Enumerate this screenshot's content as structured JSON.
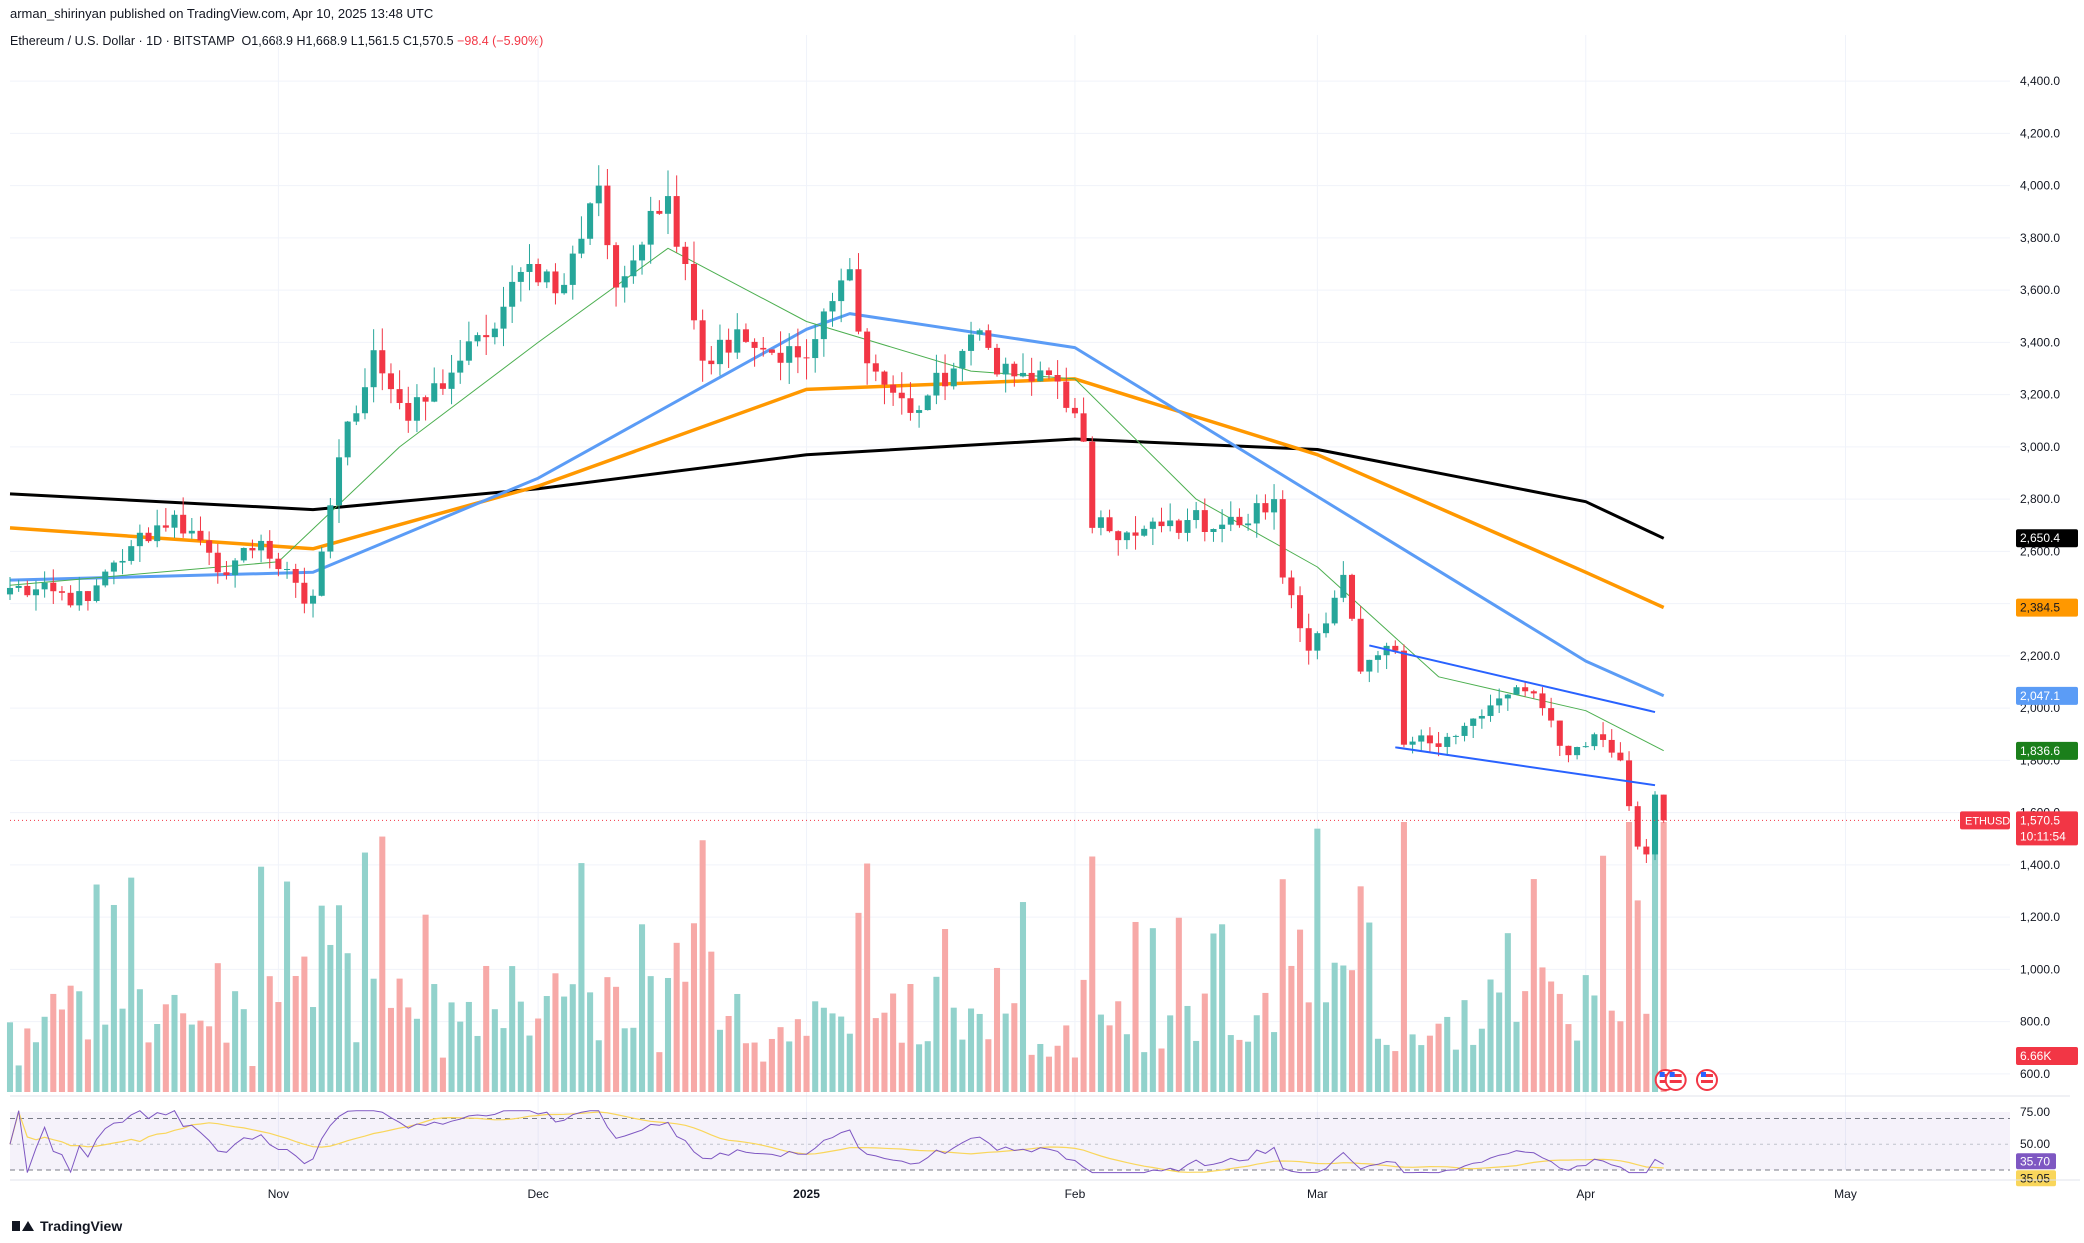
{
  "header": {
    "publisher": "arman_shirinyan published on TradingView.com, Apr 10, 2025 13:48 UTC",
    "symbol": "Ethereum / U.S. Dollar · 1D · BITSTAMP",
    "open": "O1,668.9",
    "high": "H1,668.9",
    "low": "L1,561.5",
    "close": "C1,570.5",
    "change": "−98.4 (−5.90%)"
  },
  "footer": {
    "brand": "TradingView"
  },
  "colors": {
    "up": "#26a69a",
    "down": "#f23645",
    "up_volume": "#92d2cc",
    "down_volume": "#f7a9a7",
    "ma200": "#000000",
    "ma100": "#ff9800",
    "ma50": "#5b9cf6",
    "ma20": "#4caf50",
    "channel": "#2962ff",
    "rsi": "#7e57c2",
    "rsi_ma": "#f9d65b"
  },
  "chart_data": {
    "type": "candlestick",
    "symbol": "ETHUSD",
    "timeframe": "1D",
    "y_axis": {
      "ticks": [
        "4,400.0",
        "4,200.0",
        "4,000.0",
        "3,800.0",
        "3,600.0",
        "3,400.0",
        "3,200.0",
        "3,000.0",
        "2,800.0",
        "2,600.0",
        "2,400.0",
        "2,200.0",
        "2,000.0",
        "1,800.0",
        "1,600.0",
        "1,400.0",
        "1,200.0",
        "1,000.0",
        "800.0",
        "600.0"
      ],
      "range": [
        500,
        4500
      ]
    },
    "x_axis": {
      "ticks": [
        "Nov",
        "Dec",
        "2025",
        "Feb",
        "Mar",
        "Apr",
        "May"
      ],
      "tick_dates": [
        "2024-11-01",
        "2024-12-01",
        "2025-01-01",
        "2025-02-01",
        "2025-03-01",
        "2025-04-01",
        "2025-05-01"
      ],
      "range": [
        "2024-10-01",
        "2025-05-20"
      ]
    },
    "key_closes": [
      {
        "date": "2024-10-01",
        "price": 2460
      },
      {
        "date": "2024-10-10",
        "price": 2410
      },
      {
        "date": "2024-10-15",
        "price": 2620
      },
      {
        "date": "2024-10-20",
        "price": 2740
      },
      {
        "date": "2024-10-25",
        "price": 2520
      },
      {
        "date": "2024-10-30",
        "price": 2640
      },
      {
        "date": "2024-11-04",
        "price": 2400
      },
      {
        "date": "2024-11-05",
        "price": 2430
      },
      {
        "date": "2024-11-08",
        "price": 2960
      },
      {
        "date": "2024-11-12",
        "price": 3370
      },
      {
        "date": "2024-11-16",
        "price": 3100
      },
      {
        "date": "2024-11-22",
        "price": 3330
      },
      {
        "date": "2024-11-25",
        "price": 3420
      },
      {
        "date": "2024-11-30",
        "price": 3700
      },
      {
        "date": "2024-12-04",
        "price": 3620
      },
      {
        "date": "2024-12-08",
        "price": 4000
      },
      {
        "date": "2024-12-10",
        "price": 3610
      },
      {
        "date": "2024-12-16",
        "price": 3960
      },
      {
        "date": "2024-12-18",
        "price": 3700
      },
      {
        "date": "2024-12-20",
        "price": 3330
      },
      {
        "date": "2024-12-24",
        "price": 3450
      },
      {
        "date": "2024-12-28",
        "price": 3360
      },
      {
        "date": "2025-01-01",
        "price": 3340
      },
      {
        "date": "2025-01-06",
        "price": 3680
      },
      {
        "date": "2025-01-08",
        "price": 3320
      },
      {
        "date": "2025-01-13",
        "price": 3130
      },
      {
        "date": "2025-01-18",
        "price": 3300
      },
      {
        "date": "2025-01-20",
        "price": 3430
      },
      {
        "date": "2025-01-25",
        "price": 3270
      },
      {
        "date": "2025-01-30",
        "price": 3250
      },
      {
        "date": "2025-02-02",
        "price": 3020
      },
      {
        "date": "2025-02-03",
        "price": 2690
      },
      {
        "date": "2025-02-08",
        "price": 2660
      },
      {
        "date": "2025-02-14",
        "price": 2720
      },
      {
        "date": "2025-02-20",
        "price": 2700
      },
      {
        "date": "2025-02-24",
        "price": 2800
      },
      {
        "date": "2025-02-25",
        "price": 2500
      },
      {
        "date": "2025-02-28",
        "price": 2220
      },
      {
        "date": "2025-03-04",
        "price": 2510
      },
      {
        "date": "2025-03-06",
        "price": 2140
      },
      {
        "date": "2025-03-10",
        "price": 2220
      },
      {
        "date": "2025-03-11",
        "price": 1860
      },
      {
        "date": "2025-03-16",
        "price": 1890
      },
      {
        "date": "2025-03-20",
        "price": 1970
      },
      {
        "date": "2025-03-24",
        "price": 2080
      },
      {
        "date": "2025-03-27",
        "price": 2000
      },
      {
        "date": "2025-03-30",
        "price": 1820
      },
      {
        "date": "2025-04-02",
        "price": 1900
      },
      {
        "date": "2025-04-05",
        "price": 1800
      },
      {
        "date": "2025-04-07",
        "price": 1470
      },
      {
        "date": "2025-04-08",
        "price": 1440
      },
      {
        "date": "2025-04-09",
        "price": 1669
      },
      {
        "date": "2025-04-10",
        "price": 1570.5
      }
    ],
    "series": [
      {
        "name": "ETHUSD",
        "last": "1,570.5",
        "countdown": "10:11:54"
      },
      {
        "last": "2,650.4",
        "points": [
          {
            "date": "2024-10-01",
            "price": 2820
          },
          {
            "date": "2024-11-05",
            "price": 2760
          },
          {
            "date": "2024-12-01",
            "price": 2840
          },
          {
            "date": "2025-01-01",
            "price": 2970
          },
          {
            "date": "2025-02-01",
            "price": 3030
          },
          {
            "date": "2025-03-01",
            "price": 2990
          },
          {
            "date": "2025-04-01",
            "price": 2790
          },
          {
            "date": "2025-04-10",
            "price": 2650
          }
        ]
      },
      {
        "last": "2,384.5",
        "points": [
          {
            "date": "2024-10-01",
            "price": 2690
          },
          {
            "date": "2024-11-05",
            "price": 2610
          },
          {
            "date": "2024-12-01",
            "price": 2850
          },
          {
            "date": "2025-01-01",
            "price": 3220
          },
          {
            "date": "2025-02-01",
            "price": 3260
          },
          {
            "date": "2025-03-01",
            "price": 2970
          },
          {
            "date": "2025-04-01",
            "price": 2520
          },
          {
            "date": "2025-04-10",
            "price": 2385
          }
        ]
      },
      {
        "last": "2,047.1",
        "points": [
          {
            "date": "2024-10-01",
            "price": 2490
          },
          {
            "date": "2024-11-05",
            "price": 2520
          },
          {
            "date": "2024-12-01",
            "price": 2880
          },
          {
            "date": "2025-01-01",
            "price": 3450
          },
          {
            "date": "2025-01-06",
            "price": 3510
          },
          {
            "date": "2025-02-01",
            "price": 3380
          },
          {
            "date": "2025-03-01",
            "price": 2810
          },
          {
            "date": "2025-04-01",
            "price": 2180
          },
          {
            "date": "2025-04-10",
            "price": 2047
          }
        ]
      },
      {
        "last": "1,836.6",
        "points": [
          {
            "date": "2024-10-01",
            "price": 2470
          },
          {
            "date": "2024-11-01",
            "price": 2560
          },
          {
            "date": "2024-11-15",
            "price": 3000
          },
          {
            "date": "2024-12-01",
            "price": 3400
          },
          {
            "date": "2024-12-16",
            "price": 3760
          },
          {
            "date": "2025-01-01",
            "price": 3480
          },
          {
            "date": "2025-01-20",
            "price": 3290
          },
          {
            "date": "2025-02-01",
            "price": 3260
          },
          {
            "date": "2025-02-15",
            "price": 2800
          },
          {
            "date": "2025-03-01",
            "price": 2540
          },
          {
            "date": "2025-03-15",
            "price": 2120
          },
          {
            "date": "2025-04-01",
            "price": 1990
          },
          {
            "date": "2025-04-10",
            "price": 1837
          }
        ]
      }
    ],
    "channel_lines": [
      {
        "from": {
          "date": "2025-03-07",
          "price": 2240
        },
        "to": {
          "date": "2025-04-09",
          "price": 1985
        }
      },
      {
        "from": {
          "date": "2025-03-10",
          "price": 1850
        },
        "to": {
          "date": "2025-04-09",
          "price": 1705
        }
      }
    ],
    "volume": {
      "last_label": "6.66K"
    },
    "rsi": {
      "ticks": [
        "75.00",
        "50.00"
      ],
      "value": "35.70",
      "ma_value": "35.05"
    }
  }
}
